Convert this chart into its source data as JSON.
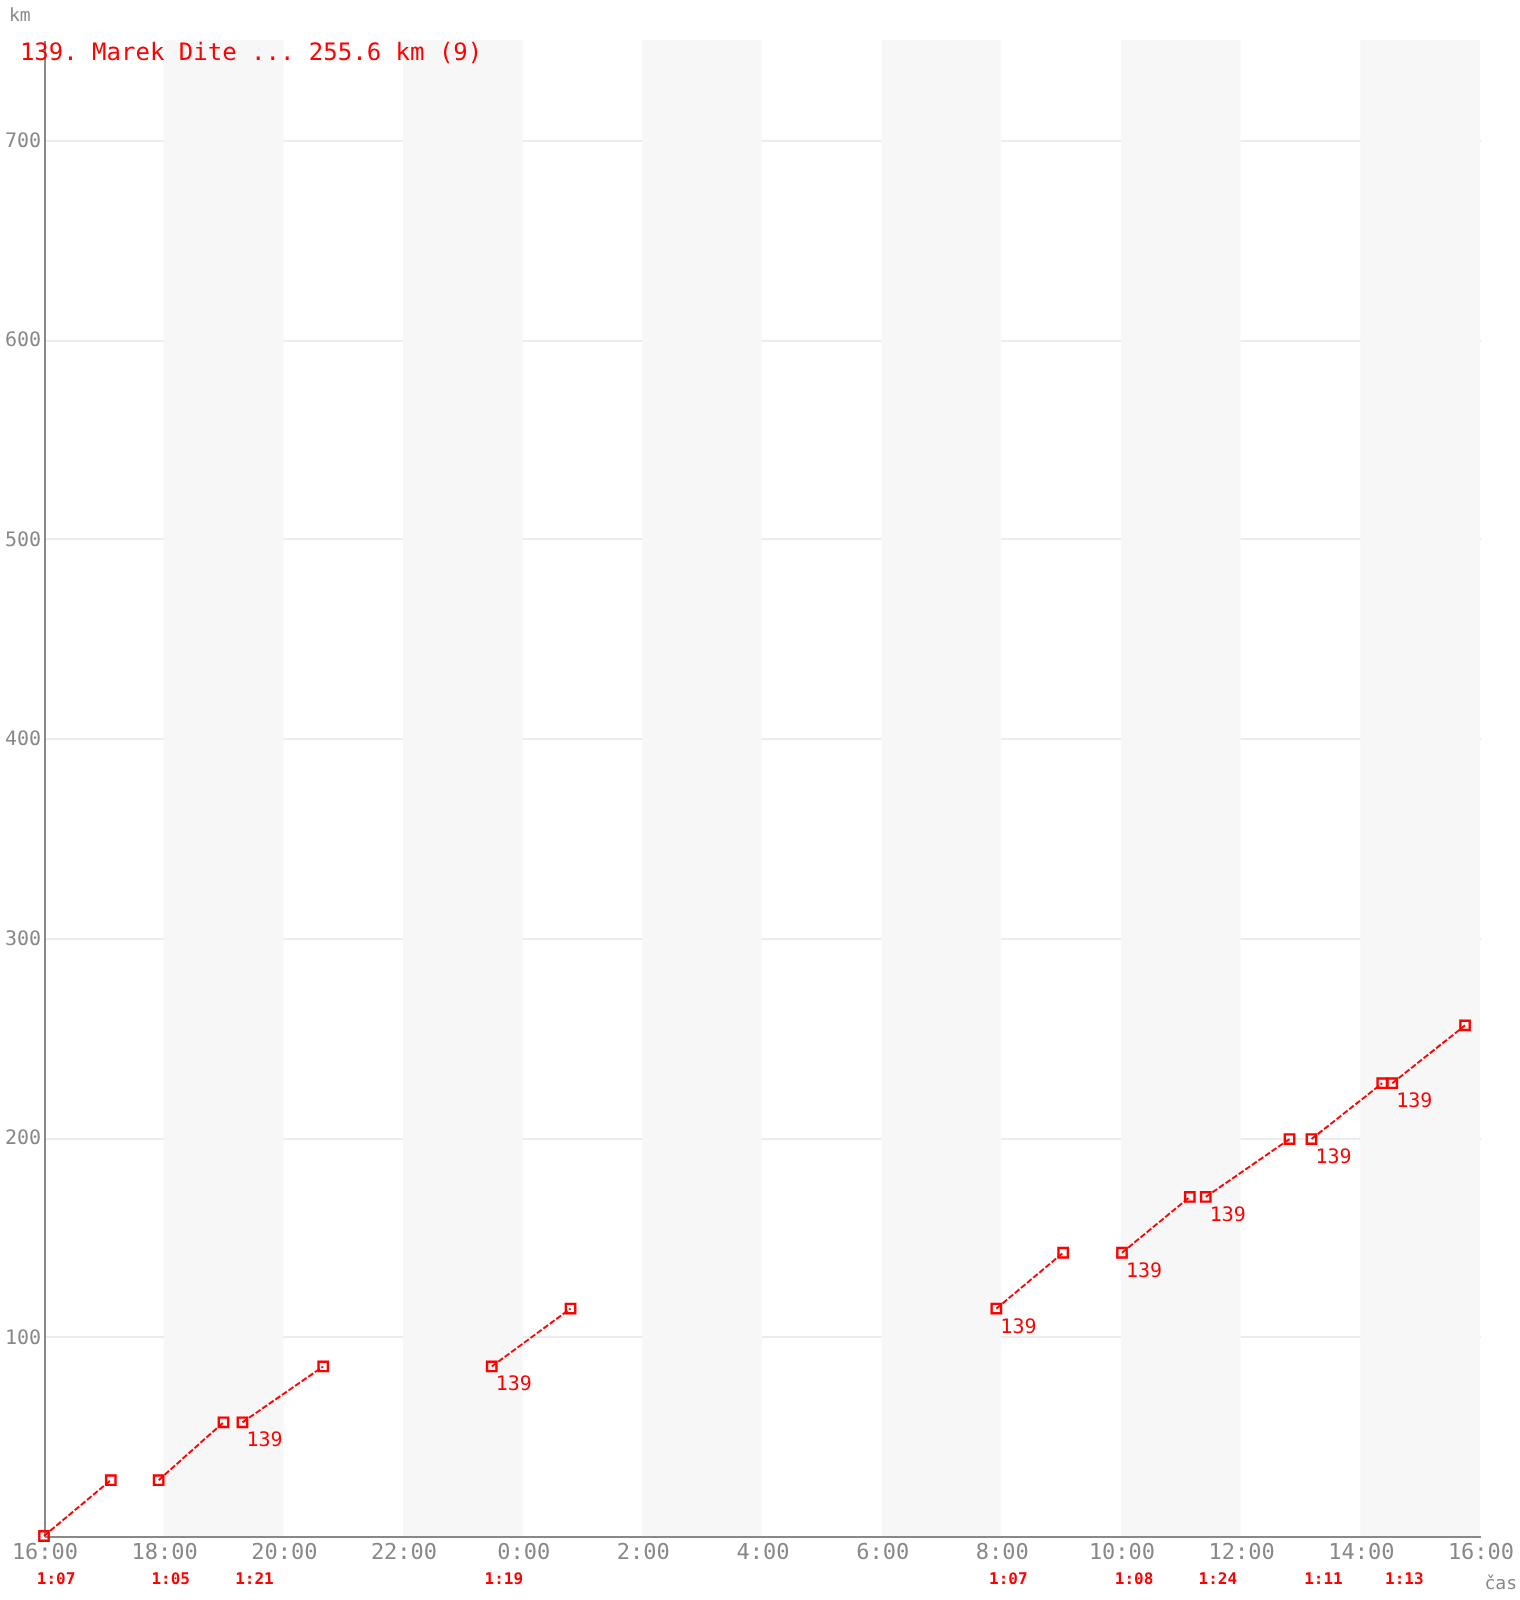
{
  "chart_data": {
    "type": "line",
    "title": "139. Marek Dite ... 255.6 km (9)",
    "xlabel": "čas",
    "ylabel": "km",
    "xlim": [
      "--01-01T16:00",
      "--01-02T16:00"
    ],
    "ylim": [
      0,
      750
    ],
    "xticks": [
      {
        "value": "--01-01T16:00",
        "label": "16:00"
      },
      {
        "value": "--01-01T18:00",
        "label": "18:00"
      },
      {
        "value": "--01-01T20:00",
        "label": "20:00"
      },
      {
        "value": "--01-01T22:00",
        "label": "22:00"
      },
      {
        "value": "--01-02T00:00",
        "label": "0:00"
      },
      {
        "value": "--01-02T02:00",
        "label": "2:00"
      },
      {
        "value": "--01-02T04:00",
        "label": "4:00"
      },
      {
        "value": "--01-02T06:00",
        "label": "6:00"
      },
      {
        "value": "--01-02T08:00",
        "label": "8:00"
      },
      {
        "value": "--01-02T10:00",
        "label": "10:00"
      },
      {
        "value": "--01-02T12:00",
        "label": "12:00"
      },
      {
        "value": "--01-02T14:00",
        "label": "14:00"
      },
      {
        "value": "--01-02T16:00",
        "label": "16:00"
      }
    ],
    "yticks": [
      100,
      200,
      300,
      400,
      500,
      600,
      700
    ],
    "grid": "y",
    "marker": "square",
    "line_style": "dashed",
    "series": [
      {
        "color": "#ff0000",
        "x": [
          "--01-01T16:00",
          "--01-01T17:07"
        ],
        "values": [
          0,
          28
        ]
      },
      {
        "color": "#ff0000",
        "x": [
          "--01-01T17:55",
          "--01-01T19:00"
        ],
        "values": [
          28,
          57
        ]
      },
      {
        "color": "#ff0000",
        "x": [
          "--01-01T19:19",
          "--01-01T20:40"
        ],
        "values": [
          57,
          85
        ]
      },
      {
        "color": "#ff0000",
        "x": [
          "--01-01T23:29",
          "--01-02T00:48"
        ],
        "values": [
          85,
          114
        ]
      },
      {
        "color": "#ff0000",
        "x": [
          "--01-02T07:55",
          "--01-02T09:02"
        ],
        "values": [
          114,
          142
        ]
      },
      {
        "color": "#ff0000",
        "x": [
          "--01-02T10:01",
          "--01-02T11:09"
        ],
        "values": [
          142,
          170
        ]
      },
      {
        "color": "#ff0000",
        "x": [
          "--01-02T11:25",
          "--01-02T12:49"
        ],
        "values": [
          170,
          199
        ]
      },
      {
        "color": "#ff0000",
        "x": [
          "--01-02T13:11",
          "--01-02T14:22"
        ],
        "values": [
          199,
          227
        ]
      },
      {
        "color": "#ff0000",
        "x": [
          "--01-02T14:32",
          "--01-02T15:45"
        ],
        "values": [
          227,
          256
        ]
      }
    ],
    "bands": [
      {
        "axis": "x",
        "from": "--01-01T18:00",
        "to": "--01-01T20:00",
        "color": "#f7f7f7"
      },
      {
        "axis": "x",
        "from": "--01-01T22:00",
        "to": "--01-02T00:00",
        "color": "#f7f7f7"
      },
      {
        "axis": "x",
        "from": "--01-02T02:00",
        "to": "--01-02T04:00",
        "color": "#f7f7f7"
      },
      {
        "axis": "x",
        "from": "--01-02T06:00",
        "to": "--01-02T08:00",
        "color": "#f7f7f7"
      },
      {
        "axis": "x",
        "from": "--01-02T10:00",
        "to": "--01-02T12:00",
        "color": "#f7f7f7"
      },
      {
        "axis": "x",
        "from": "--01-02T14:00",
        "to": "--01-02T16:00",
        "color": "#f7f7f7"
      }
    ],
    "annotations": [
      {
        "text": "139",
        "x": "--01-01T19:19",
        "y": 57
      },
      {
        "text": "139",
        "x": "--01-01T23:29",
        "y": 85
      },
      {
        "text": "139",
        "x": "--01-02T07:55",
        "y": 114
      },
      {
        "text": "139",
        "x": "--01-02T10:01",
        "y": 142
      },
      {
        "text": "139",
        "x": "--01-02T11:25",
        "y": 170
      },
      {
        "text": "139",
        "x": "--01-02T13:11",
        "y": 199
      },
      {
        "text": "139",
        "x": "--01-02T14:32",
        "y": 227
      },
      "1:07",
      "1:05",
      "1:21",
      "1:19",
      "1:07",
      "1:08",
      "1:24",
      "1:11",
      "1:13"
    ]
  }
}
